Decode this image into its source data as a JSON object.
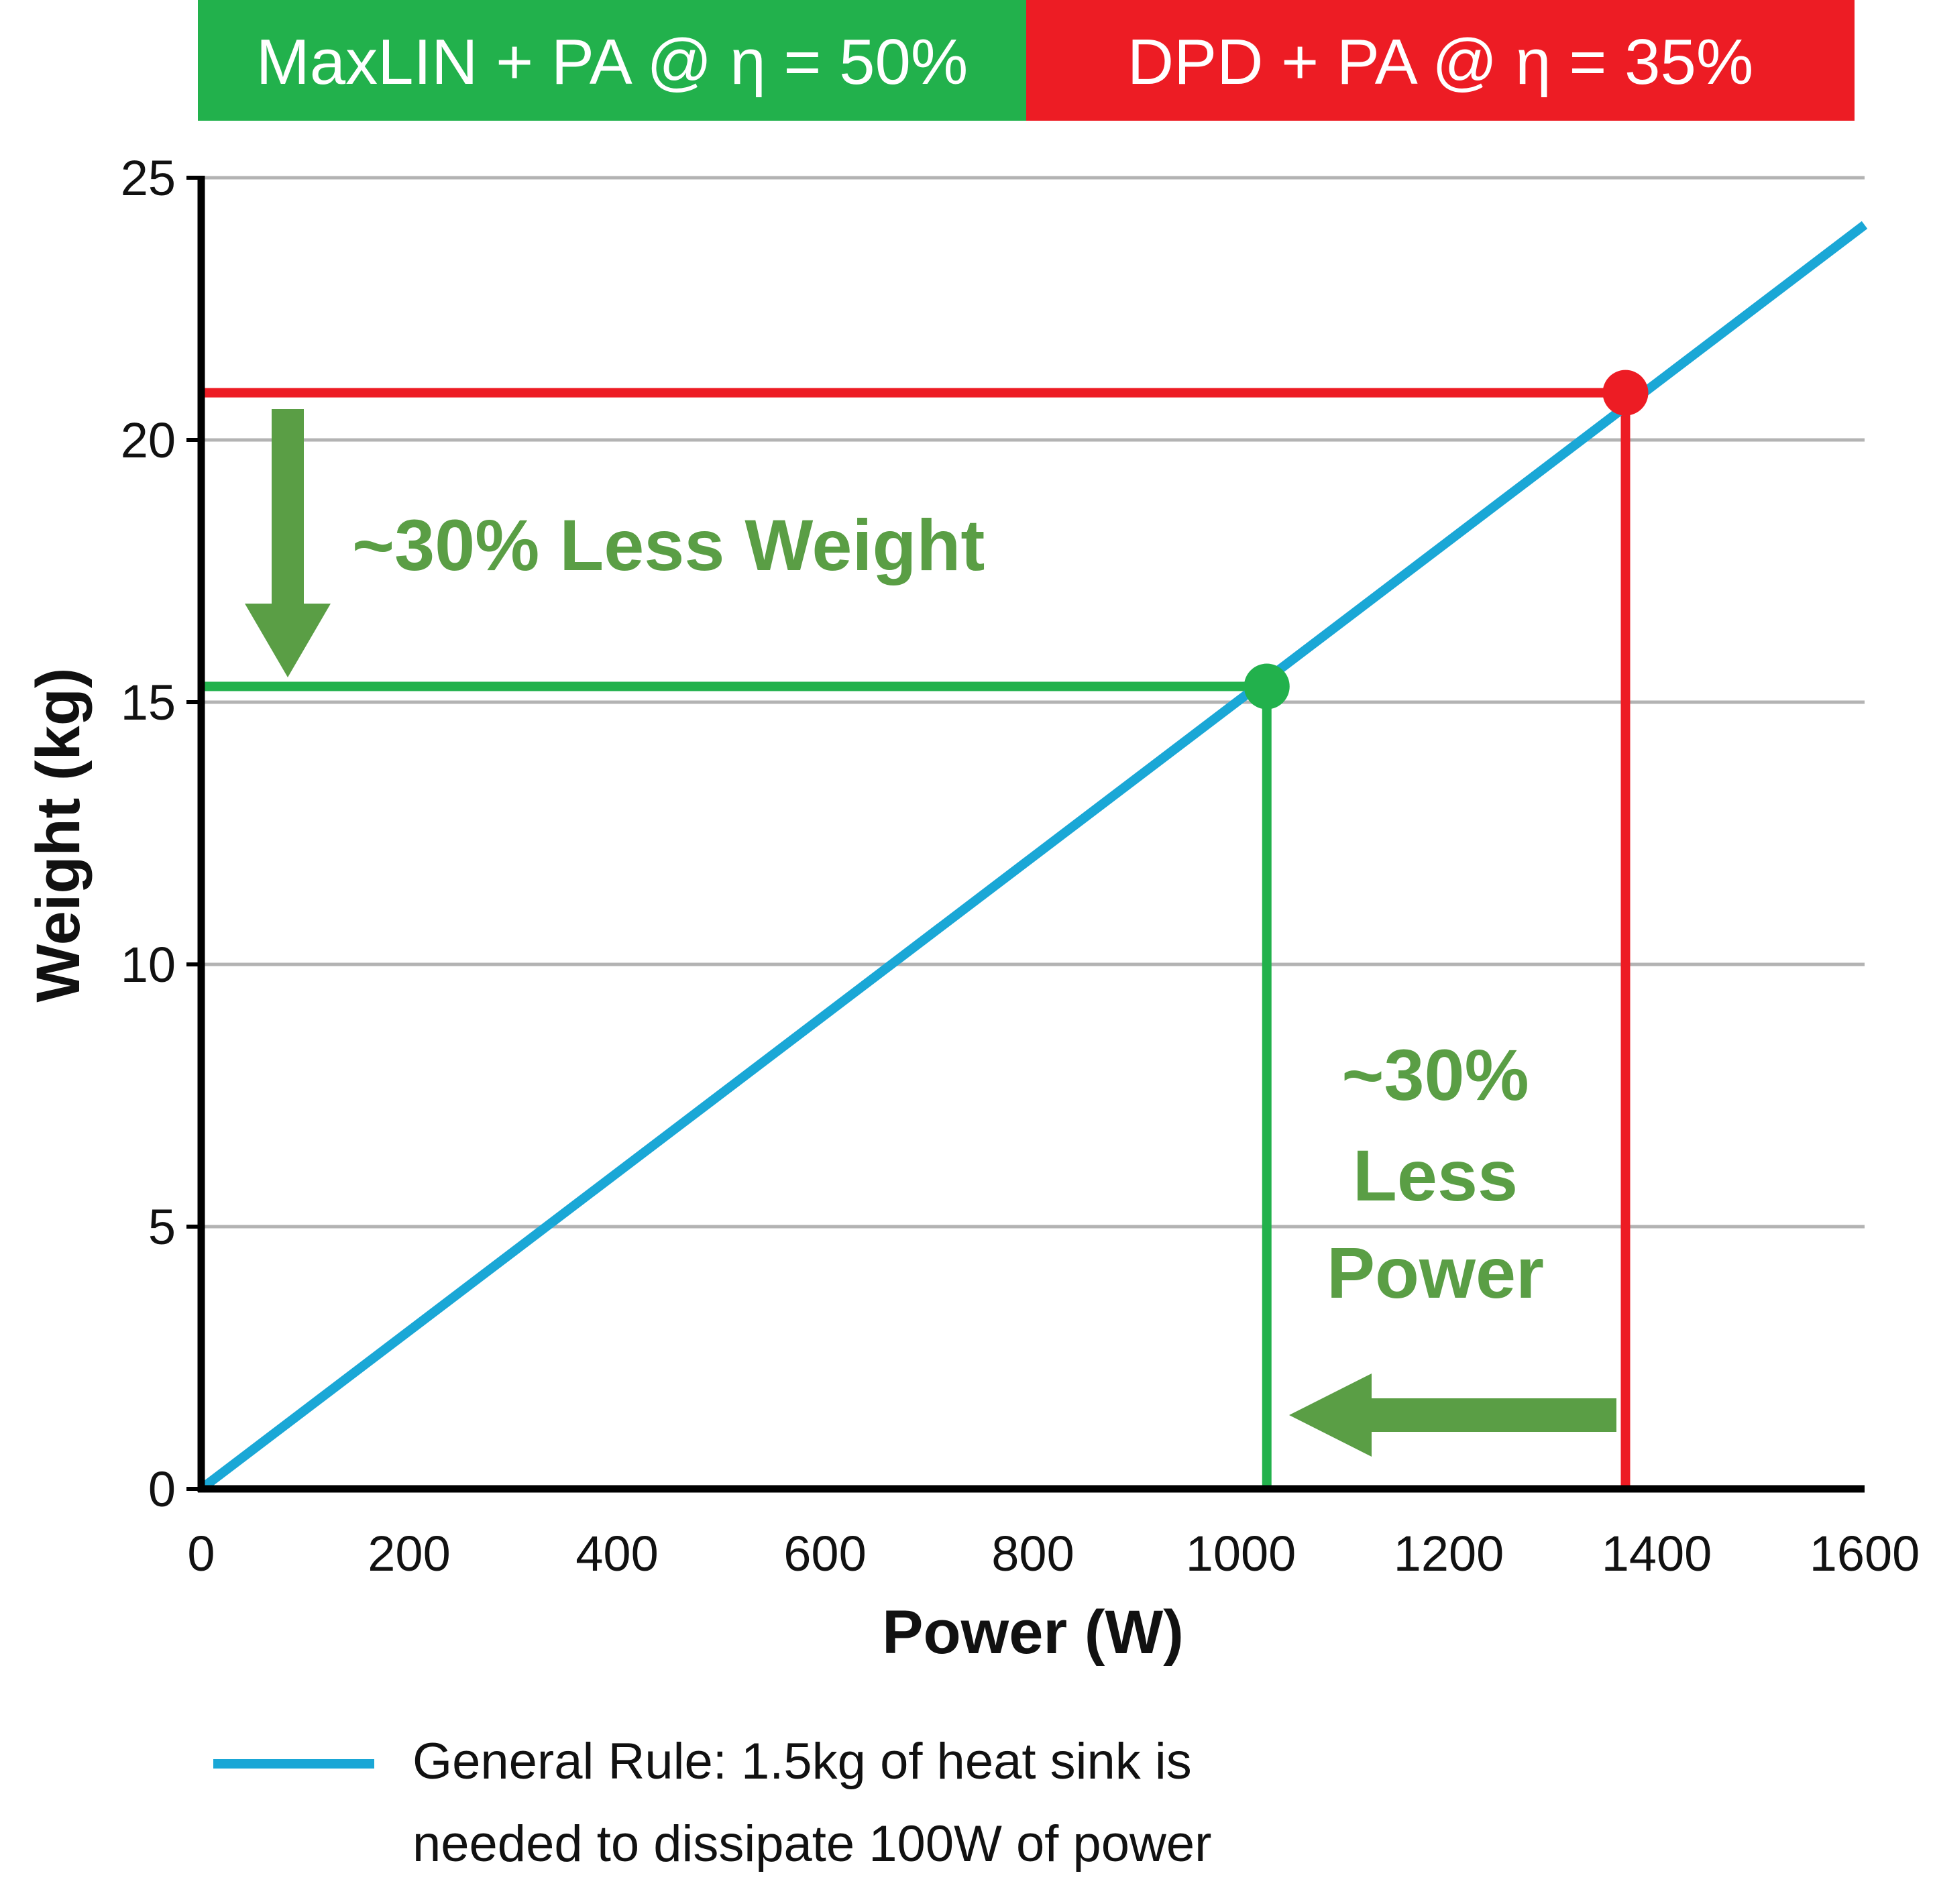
{
  "chart_data": {
    "type": "line",
    "xlabel": "Power (W)",
    "ylabel": "Weight (kg)",
    "xlim": [
      0,
      1600
    ],
    "ylim": [
      0,
      25
    ],
    "x_ticks": [
      0,
      200,
      400,
      600,
      800,
      1000,
      1200,
      1400,
      1600
    ],
    "y_ticks": [
      0,
      5,
      10,
      15,
      20,
      25
    ],
    "grid": "horizontal",
    "legend_position": "bottom-left",
    "series": [
      {
        "name": "General Rule: 1.5kg of heat sink is needed to dissipate 100W of power",
        "name_lines": [
          "General Rule: 1.5kg of heat sink is",
          "needed to dissipate 100W of power"
        ],
        "color": "#1aa7d6",
        "x": [
          0,
          1600
        ],
        "y": [
          0,
          24.1
        ]
      }
    ],
    "header": [
      {
        "label": "MaxLIN + PA @ η = 50%",
        "color": "#22b14c"
      },
      {
        "label": "DPD + PA @ η = 35%",
        "color": "#ed1c24"
      }
    ],
    "markers": [
      {
        "name": "dpd-point",
        "x": 1370,
        "y": 20.9,
        "color": "#ed1c24"
      },
      {
        "name": "maxlin-point",
        "x": 1025,
        "y": 15.3,
        "color": "#22b14c"
      }
    ],
    "annotations": {
      "weight_text": "~30% Less Weight",
      "power_lines": [
        "~30%",
        "Less",
        "Power"
      ],
      "color": "#5a9e45"
    }
  }
}
